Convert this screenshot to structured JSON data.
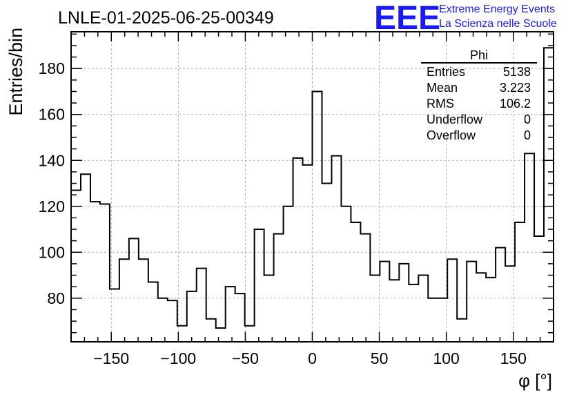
{
  "run_title": "LNLE-01-2025-06-25-00349",
  "logo": {
    "mark": "EEE",
    "line1": "Extreme Energy Events",
    "line2": "La Scienza nelle Scuole",
    "color": "#1a1aff"
  },
  "stats": {
    "title": "Phi",
    "rows": [
      {
        "label": "Entries",
        "value": "5138"
      },
      {
        "label": "Mean",
        "value": "3.223"
      },
      {
        "label": "RMS",
        "value": "106.2"
      },
      {
        "label": "Underflow",
        "value": "0"
      },
      {
        "label": "Overflow",
        "value": "0"
      }
    ]
  },
  "chart_data": {
    "type": "bar",
    "title": "LNLE-01-2025-06-25-00349",
    "xlabel": "φ [°]",
    "ylabel": "Entries/bin",
    "xlim": [
      -180,
      180
    ],
    "ylim": [
      61,
      196
    ],
    "bin_width": 7.2,
    "x_ticks": [
      -150,
      -100,
      -50,
      0,
      50,
      100,
      150
    ],
    "x_tick_labels": [
      "−150",
      "−100",
      "−50",
      "0",
      "50",
      "100",
      "150"
    ],
    "y_ticks": [
      80,
      100,
      120,
      140,
      160,
      180
    ],
    "y_tick_labels": [
      "80",
      "100",
      "120",
      "140",
      "160",
      "180"
    ],
    "grid": true,
    "values": [
      127,
      134,
      122,
      121,
      84,
      97,
      106,
      97,
      87,
      80,
      79,
      68,
      83,
      93,
      71,
      67,
      85,
      82,
      68,
      110,
      90,
      108,
      120,
      141,
      138,
      170,
      130,
      142,
      120,
      113,
      108,
      90,
      96,
      88,
      95,
      86,
      90,
      80,
      80,
      97,
      71,
      96,
      91,
      89,
      102,
      94,
      113,
      143,
      107,
      189
    ]
  }
}
